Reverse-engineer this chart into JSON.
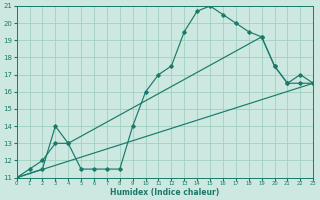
{
  "xlabel": "Humidex (Indice chaleur)",
  "background_color": "#cce8e0",
  "grid_color": "#99ccbb",
  "line_color": "#1a7a6a",
  "ylim": [
    11,
    21
  ],
  "xlim": [
    0,
    23
  ],
  "yticks": [
    11,
    12,
    13,
    14,
    15,
    16,
    17,
    18,
    19,
    20,
    21
  ],
  "xticks": [
    0,
    1,
    2,
    3,
    4,
    5,
    6,
    7,
    8,
    9,
    10,
    11,
    12,
    13,
    14,
    15,
    16,
    17,
    18,
    19,
    20,
    21,
    22,
    23
  ],
  "line1_x": [
    0,
    1,
    2,
    3,
    4,
    5,
    6,
    7,
    8,
    9,
    10,
    11,
    12,
    13,
    14,
    15,
    16,
    17,
    18,
    19,
    20,
    21,
    22,
    23
  ],
  "line1_y": [
    11.0,
    11.5,
    12.0,
    13.0,
    13.0,
    11.5,
    11.5,
    11.5,
    11.5,
    14.0,
    16.0,
    17.0,
    17.5,
    19.5,
    20.7,
    21.0,
    20.5,
    20.0,
    19.5,
    19.2,
    17.5,
    16.5,
    17.0,
    16.5
  ],
  "line2_x": [
    0,
    2,
    3,
    4,
    19,
    20,
    21,
    22,
    23
  ],
  "line2_y": [
    11.0,
    11.5,
    14.0,
    13.0,
    19.2,
    17.5,
    16.5,
    16.5,
    16.5
  ],
  "line3_x": [
    0,
    23
  ],
  "line3_y": [
    11.0,
    16.5
  ]
}
